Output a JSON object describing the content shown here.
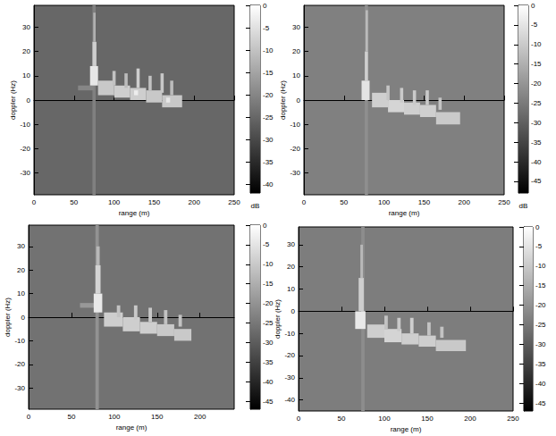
{
  "chart_data": [
    {
      "type": "heatmap",
      "x_label": "range (m)",
      "y_label": "doppler (Hz)",
      "xlim": [
        0,
        250
      ],
      "xticks": [
        0,
        50,
        100,
        150,
        200,
        250
      ],
      "ylim": [
        -39,
        39
      ],
      "yticks": [
        -30,
        -20,
        -10,
        0,
        10,
        20,
        30
      ],
      "colorbar": {
        "range": [
          -42,
          0
        ],
        "ticks": [
          0,
          -5,
          -10,
          -15,
          -20,
          -25,
          -30,
          -35,
          -40
        ],
        "label": "dB"
      },
      "noise_level": -25,
      "regions": [
        [
          73,
          77,
          -39,
          39,
          -21
        ],
        [
          55,
          75,
          4,
          6,
          -20
        ],
        [
          70,
          80,
          6,
          14,
          -4
        ],
        [
          73,
          78,
          14,
          24,
          -8
        ],
        [
          74,
          77,
          24,
          36,
          -13
        ],
        [
          80,
          100,
          2,
          8,
          -9
        ],
        [
          100,
          120,
          1,
          6,
          -8
        ],
        [
          120,
          140,
          0,
          5,
          -8
        ],
        [
          140,
          160,
          -1,
          4,
          -9
        ],
        [
          160,
          185,
          -3,
          2,
          -9
        ],
        [
          98,
          102,
          6,
          12,
          -10
        ],
        [
          113,
          117,
          5,
          11,
          -11
        ],
        [
          128,
          132,
          5,
          13,
          -8
        ],
        [
          143,
          147,
          4,
          10,
          -10
        ],
        [
          158,
          162,
          3,
          11,
          -9
        ],
        [
          170,
          174,
          2,
          8,
          -11
        ],
        [
          125,
          130,
          2,
          4,
          -3
        ],
        [
          165,
          170,
          -1,
          1,
          -4
        ]
      ]
    },
    {
      "type": "heatmap",
      "x_label": "range (m)",
      "y_label": "doppler (Hz)",
      "xlim": [
        0,
        250
      ],
      "xticks": [
        0,
        50,
        100,
        150,
        200,
        250
      ],
      "ylim": [
        -39,
        39
      ],
      "yticks": [
        -30,
        -20,
        -10,
        0,
        10,
        20,
        30
      ],
      "colorbar": {
        "range": [
          -48,
          0
        ],
        "ticks": [
          0,
          -5,
          -10,
          -15,
          -20,
          -25,
          -30,
          -35,
          -40,
          -45
        ],
        "label": "dB"
      },
      "noise_level": -24,
      "regions": [
        [
          76,
          80,
          -39,
          39,
          -21
        ],
        [
          72,
          82,
          0,
          8,
          -5
        ],
        [
          76,
          80,
          8,
          20,
          -9
        ],
        [
          77,
          80,
          20,
          37,
          -13
        ],
        [
          85,
          105,
          -3,
          3,
          -9
        ],
        [
          105,
          125,
          -5,
          0,
          -8
        ],
        [
          125,
          145,
          -6,
          -1,
          -9
        ],
        [
          145,
          165,
          -7,
          -2,
          -9
        ],
        [
          165,
          195,
          -10,
          -5,
          -10
        ],
        [
          103,
          107,
          0,
          6,
          -11
        ],
        [
          120,
          124,
          -1,
          5,
          -10
        ],
        [
          136,
          140,
          -2,
          4,
          -10
        ],
        [
          152,
          156,
          -2,
          4,
          -10
        ],
        [
          168,
          172,
          -4,
          1,
          -11
        ]
      ]
    },
    {
      "type": "heatmap",
      "x_label": "range (m)",
      "y_label": "doppler (Hz)",
      "xlim": [
        0,
        240
      ],
      "xticks": [
        0,
        50,
        100,
        150,
        200
      ],
      "ylim": [
        -39,
        39
      ],
      "yticks": [
        -30,
        -20,
        -10,
        0,
        10,
        20,
        30
      ],
      "colorbar": {
        "range": [
          -47,
          0
        ],
        "ticks": [
          0,
          -5,
          -10,
          -15,
          -20,
          -25,
          -30,
          -35,
          -40,
          -45
        ]
      },
      "noise_level": -26,
      "regions": [
        [
          78,
          82,
          -39,
          39,
          -20
        ],
        [
          60,
          80,
          4,
          6,
          -19
        ],
        [
          76,
          86,
          2,
          10,
          -4
        ],
        [
          78,
          84,
          10,
          22,
          -8
        ],
        [
          79,
          83,
          22,
          30,
          -13
        ],
        [
          88,
          110,
          -4,
          2,
          -9
        ],
        [
          110,
          130,
          -6,
          0,
          -9
        ],
        [
          130,
          150,
          -7,
          -2,
          -9
        ],
        [
          150,
          170,
          -8,
          -3,
          -10
        ],
        [
          170,
          190,
          -10,
          -5,
          -10
        ],
        [
          103,
          107,
          0,
          5,
          -11
        ],
        [
          123,
          127,
          -1,
          5,
          -10
        ],
        [
          140,
          144,
          -2,
          4,
          -10
        ],
        [
          158,
          162,
          -3,
          3,
          -11
        ],
        [
          175,
          179,
          -4,
          1,
          -11
        ]
      ]
    },
    {
      "type": "heatmap",
      "x_label": "range (m)",
      "y_label": "doppler (Hz)",
      "xlim": [
        0,
        250
      ],
      "xticks": [
        0,
        50,
        100,
        150,
        200,
        250
      ],
      "ylim": [
        -45,
        38
      ],
      "yticks": [
        -40,
        -30,
        -20,
        -10,
        0,
        10,
        20,
        30
      ],
      "colorbar": {
        "range": [
          -47,
          0
        ],
        "ticks": [
          0,
          -5,
          -10,
          -15,
          -20,
          -25,
          -30,
          -35,
          -40,
          -45
        ]
      },
      "noise_level": -24,
      "regions": [
        [
          73,
          77,
          -45,
          38,
          -21
        ],
        [
          66,
          78,
          -8,
          0,
          -4
        ],
        [
          70,
          76,
          0,
          15,
          -9
        ],
        [
          72,
          75,
          15,
          30,
          -13
        ],
        [
          80,
          100,
          -12,
          -6,
          -9
        ],
        [
          100,
          120,
          -14,
          -8,
          -8
        ],
        [
          120,
          140,
          -15,
          -10,
          -9
        ],
        [
          140,
          160,
          -16,
          -11,
          -9
        ],
        [
          160,
          195,
          -18,
          -13,
          -10
        ],
        [
          100,
          104,
          -8,
          -2,
          -11
        ],
        [
          115,
          119,
          -9,
          -3,
          -10
        ],
        [
          130,
          134,
          -10,
          -3,
          -9
        ],
        [
          150,
          154,
          -11,
          -5,
          -11
        ],
        [
          165,
          169,
          -12,
          -7,
          -11
        ]
      ]
    }
  ]
}
